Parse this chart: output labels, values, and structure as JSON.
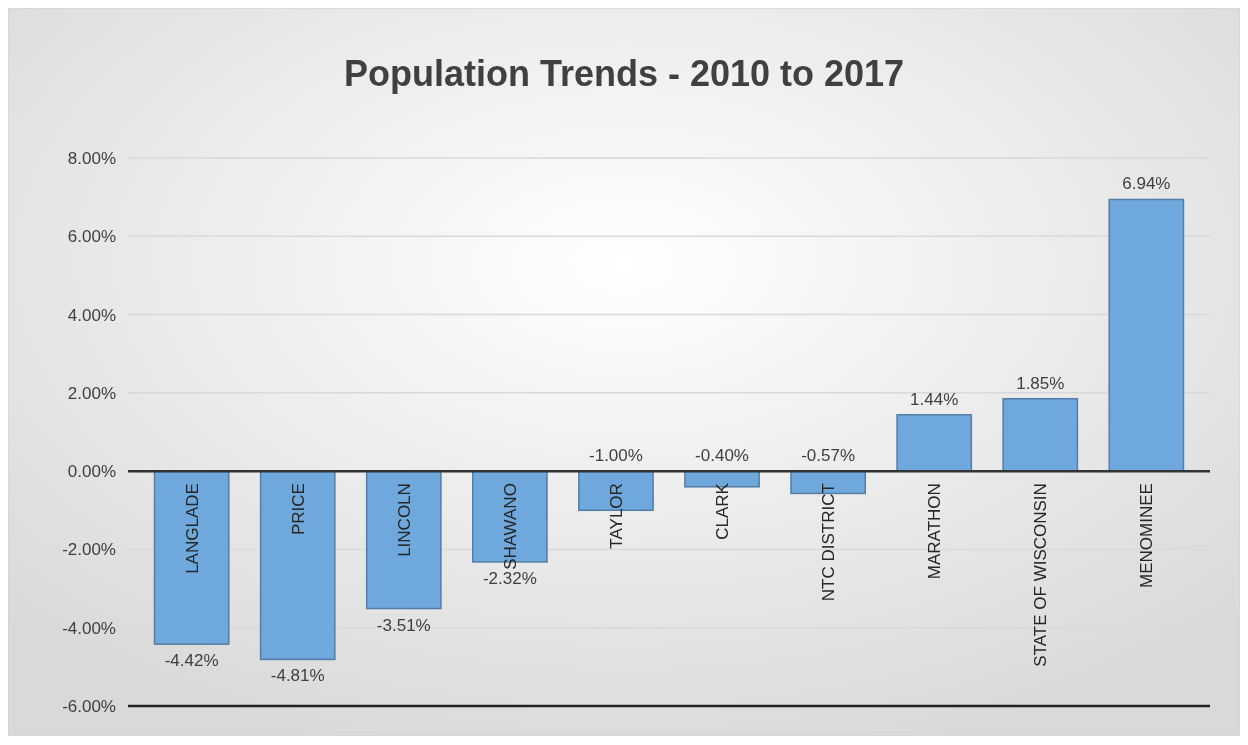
{
  "chart_data": {
    "type": "bar",
    "title": "Population Trends - 2010 to 2017",
    "categories": [
      "LANGLADE",
      "PRICE",
      "LINCOLN",
      "SHAWANO",
      "TAYLOR",
      "CLARK",
      "NTC DISTRICT",
      "MARATHON",
      "STATE OF WISCONSIN",
      "MENOMINEE"
    ],
    "values": [
      -4.42,
      -4.81,
      -3.51,
      -2.32,
      -1.0,
      -0.4,
      -0.57,
      1.44,
      1.85,
      6.94
    ],
    "value_labels": [
      "-4.42%",
      "-4.81%",
      "-3.51%",
      "-2.32%",
      "-1.00%",
      "-0.40%",
      "-0.57%",
      "1.44%",
      "1.85%",
      "6.94%"
    ],
    "color": "#6fa8dc",
    "ylim": [
      -6,
      8
    ],
    "yticks": [
      {
        "value": -6,
        "label": "-6.00%"
      },
      {
        "value": -4,
        "label": "-4.00%"
      },
      {
        "value": -2,
        "label": "-2.00%"
      },
      {
        "value": 0,
        "label": "0.00%"
      },
      {
        "value": 2,
        "label": "2.00%"
      },
      {
        "value": 4,
        "label": "4.00%"
      },
      {
        "value": 6,
        "label": "6.00%"
      },
      {
        "value": 8,
        "label": "8.00%"
      }
    ],
    "grid": "y"
  }
}
